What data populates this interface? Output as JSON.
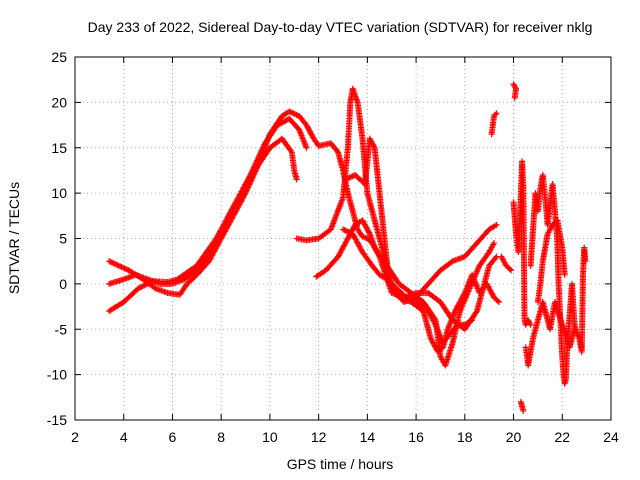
{
  "chart_data": {
    "type": "scatter",
    "title": "Day 233 of 2022, Sidereal Day-to-day VTEC variation (SDTVAR) for receiver nklg",
    "xlabel": "GPS time / hours",
    "ylabel": "SDTVAR / TECUs",
    "xlim": [
      2,
      24
    ],
    "ylim": [
      -15,
      25
    ],
    "xticks": [
      2,
      4,
      6,
      8,
      10,
      12,
      14,
      16,
      18,
      20,
      22,
      24
    ],
    "yticks": [
      -15,
      -10,
      -5,
      0,
      5,
      10,
      15,
      20,
      25
    ],
    "grid": true,
    "marker": "+",
    "color": "#ff0000",
    "tracks": [
      [
        [
          3.4,
          -3.0
        ],
        [
          4.0,
          -2.0
        ],
        [
          4.6,
          -0.5
        ],
        [
          5.2,
          0.3
        ],
        [
          5.8,
          0.2
        ],
        [
          6.2,
          0.5
        ],
        [
          7.0,
          2.0
        ],
        [
          7.8,
          5.0
        ],
        [
          8.5,
          8.5
        ],
        [
          9.2,
          12.0
        ],
        [
          9.8,
          15.5
        ],
        [
          10.3,
          17.5
        ],
        [
          10.8,
          18.2
        ],
        [
          11.2,
          17.0
        ],
        [
          11.5,
          15.0
        ]
      ],
      [
        [
          3.4,
          0.0
        ],
        [
          4.0,
          0.5
        ],
        [
          4.5,
          1.0
        ],
        [
          5.0,
          0.5
        ],
        [
          5.5,
          0.0
        ],
        [
          6.0,
          0.0
        ],
        [
          6.5,
          0.5
        ],
        [
          7.0,
          1.5
        ],
        [
          7.5,
          3.0
        ],
        [
          8.0,
          5.5
        ],
        [
          8.5,
          8.0
        ],
        [
          9.0,
          10.5
        ],
        [
          9.5,
          13.0
        ],
        [
          10.0,
          15.0
        ],
        [
          10.5,
          16.0
        ],
        [
          10.9,
          14.5
        ],
        [
          11.0,
          12.5
        ],
        [
          11.1,
          11.5
        ]
      ],
      [
        [
          3.4,
          2.5
        ],
        [
          3.8,
          2.0
        ],
        [
          4.2,
          1.5
        ],
        [
          4.8,
          0.5
        ],
        [
          5.3,
          -0.5
        ],
        [
          5.8,
          -1.0
        ],
        [
          6.3,
          -1.2
        ],
        [
          6.6,
          0.0
        ],
        [
          7.0,
          1.0
        ],
        [
          7.5,
          2.5
        ],
        [
          8.0,
          5.0
        ],
        [
          8.5,
          7.5
        ],
        [
          9.0,
          10.0
        ],
        [
          9.5,
          13.0
        ],
        [
          10.0,
          16.5
        ],
        [
          10.5,
          18.5
        ],
        [
          10.8,
          19.0
        ],
        [
          11.2,
          18.5
        ],
        [
          11.5,
          17.5
        ],
        [
          11.8,
          16.0
        ],
        [
          12.0,
          15.2
        ],
        [
          12.5,
          15.5
        ],
        [
          12.8,
          14.5
        ],
        [
          13.0,
          12.5
        ],
        [
          13.2,
          10.0
        ],
        [
          13.4,
          8.0
        ],
        [
          13.6,
          6.0
        ],
        [
          13.8,
          5.2
        ],
        [
          14.0,
          5.0
        ],
        [
          14.2,
          4.5
        ],
        [
          14.5,
          3.0
        ],
        [
          15.0,
          -1.0
        ],
        [
          15.5,
          -1.5
        ],
        [
          16.0,
          -1.0
        ],
        [
          16.5,
          -1.0
        ],
        [
          17.0,
          -2.0
        ],
        [
          17.5,
          -4.0
        ],
        [
          18.0,
          -5.0
        ],
        [
          18.5,
          -3.0
        ],
        [
          19.0,
          2.0
        ],
        [
          19.3,
          3.0
        ]
      ],
      [
        [
          11.1,
          5.0
        ],
        [
          11.5,
          4.8
        ],
        [
          12.0,
          5.0
        ],
        [
          12.5,
          6.0
        ],
        [
          13.0,
          9.5
        ],
        [
          13.2,
          15.0
        ],
        [
          13.3,
          20.0
        ],
        [
          13.4,
          21.5
        ],
        [
          13.6,
          20.0
        ],
        [
          13.8,
          16.0
        ],
        [
          14.0,
          10.0
        ],
        [
          14.3,
          7.0
        ],
        [
          14.6,
          4.0
        ],
        [
          15.0,
          0.0
        ],
        [
          15.5,
          -2.0
        ],
        [
          16.0,
          -1.5
        ],
        [
          16.5,
          0.0
        ],
        [
          17.0,
          1.5
        ],
        [
          17.5,
          2.5
        ],
        [
          18.0,
          3.0
        ],
        [
          18.5,
          4.5
        ],
        [
          19.0,
          6.0
        ],
        [
          19.3,
          6.5
        ]
      ],
      [
        [
          11.9,
          0.8
        ],
        [
          12.3,
          1.5
        ],
        [
          12.8,
          3.0
        ],
        [
          13.2,
          5.0
        ],
        [
          13.5,
          6.5
        ],
        [
          13.8,
          7.0
        ],
        [
          14.1,
          5.5
        ],
        [
          14.3,
          4.0
        ],
        [
          14.8,
          2.0
        ],
        [
          15.3,
          0.0
        ],
        [
          15.8,
          -1.0
        ],
        [
          16.3,
          -2.0
        ],
        [
          16.8,
          -4.0
        ],
        [
          17.0,
          -8.0
        ],
        [
          17.2,
          -9.0
        ],
        [
          17.5,
          -6.5
        ],
        [
          17.8,
          -3.0
        ],
        [
          18.2,
          -0.5
        ],
        [
          18.6,
          2.0
        ],
        [
          19.0,
          3.5
        ],
        [
          19.2,
          4.5
        ]
      ],
      [
        [
          13.1,
          11.5
        ],
        [
          13.5,
          12.0
        ],
        [
          13.9,
          11.0
        ],
        [
          14.1,
          16.0
        ],
        [
          14.3,
          15.0
        ],
        [
          14.5,
          10.0
        ],
        [
          14.7,
          5.0
        ],
        [
          14.9,
          0.0
        ],
        [
          15.3,
          -1.5
        ],
        [
          15.8,
          -2.0
        ],
        [
          16.3,
          -3.0
        ],
        [
          16.6,
          -6.0
        ],
        [
          16.9,
          -7.5
        ],
        [
          17.1,
          -7.0
        ],
        [
          17.3,
          -5.0
        ],
        [
          17.6,
          -3.0
        ],
        [
          18.0,
          -1.0
        ],
        [
          18.3,
          1.0
        ],
        [
          18.6,
          -1.0
        ],
        [
          18.9,
          0.0
        ],
        [
          19.2,
          -1.5
        ],
        [
          19.4,
          -2.0
        ]
      ],
      [
        [
          13.0,
          6.0
        ],
        [
          13.4,
          5.5
        ],
        [
          13.8,
          3.5
        ],
        [
          14.2,
          2.0
        ],
        [
          14.5,
          1.0
        ],
        [
          14.8,
          0.5
        ],
        [
          15.2,
          -0.5
        ],
        [
          15.6,
          -1.5
        ],
        [
          16.0,
          -2.0
        ],
        [
          16.4,
          -2.5
        ],
        [
          16.8,
          -4.5
        ],
        [
          17.1,
          -6.5
        ],
        [
          17.4,
          -5.5
        ],
        [
          17.7,
          -4.5
        ],
        [
          18.0,
          -4.5
        ],
        [
          18.3,
          -4.0
        ]
      ],
      [
        [
          19.1,
          16.5
        ],
        [
          19.2,
          18.5
        ],
        [
          19.3,
          18.8
        ]
      ],
      [
        [
          19.5,
          3.0
        ],
        [
          19.7,
          2.0
        ],
        [
          19.9,
          1.5
        ]
      ],
      [
        [
          20.0,
          22.0
        ],
        [
          20.1,
          21.5
        ],
        [
          20.05,
          20.5
        ]
      ],
      [
        [
          20.0,
          9.0
        ],
        [
          20.1,
          5.5
        ],
        [
          20.2,
          3.5
        ],
        [
          20.3,
          10.0
        ],
        [
          20.35,
          13.5
        ],
        [
          20.4,
          11.0
        ],
        [
          20.45,
          -4.0
        ],
        [
          20.5,
          -4.5
        ],
        [
          20.6,
          -4.0
        ],
        [
          20.7,
          -4.5
        ]
      ],
      [
        [
          20.3,
          -13.0
        ],
        [
          20.35,
          -13.5
        ],
        [
          20.4,
          -14.0
        ]
      ],
      [
        [
          20.7,
          2.0
        ],
        [
          20.8,
          6.0
        ],
        [
          20.9,
          10.0
        ],
        [
          21.0,
          8.0
        ],
        [
          21.1,
          10.5
        ],
        [
          21.2,
          12.0
        ],
        [
          21.3,
          9.5
        ],
        [
          21.4,
          6.5
        ],
        [
          21.5,
          8.5
        ],
        [
          21.6,
          11.0
        ],
        [
          21.7,
          8.0
        ],
        [
          21.8,
          4.5
        ],
        [
          21.85,
          0.0
        ],
        [
          21.9,
          -3.0
        ],
        [
          22.0,
          -8.0
        ],
        [
          22.05,
          -10.0
        ],
        [
          22.1,
          -11.0
        ],
        [
          22.15,
          -10.5
        ],
        [
          22.2,
          -7.0
        ],
        [
          22.3,
          -3.5
        ],
        [
          22.4,
          0.0
        ],
        [
          22.5,
          -4.5
        ],
        [
          22.6,
          -5.5
        ],
        [
          22.7,
          -6.0
        ],
        [
          22.8,
          -7.5
        ],
        [
          22.85,
          1.0
        ],
        [
          22.9,
          4.0
        ],
        [
          22.95,
          2.5
        ]
      ],
      [
        [
          21.0,
          -2.0
        ],
        [
          21.1,
          0.0
        ],
        [
          21.2,
          2.5
        ],
        [
          21.3,
          4.0
        ],
        [
          21.4,
          5.5
        ],
        [
          21.6,
          6.5
        ],
        [
          21.8,
          7.0
        ],
        [
          22.0,
          4.0
        ],
        [
          22.1,
          1.0
        ]
      ],
      [
        [
          20.5,
          -7.0
        ],
        [
          20.6,
          -9.0
        ],
        [
          20.8,
          -6.0
        ],
        [
          21.2,
          -2.0
        ],
        [
          21.5,
          -5.0
        ],
        [
          21.7,
          -2.0
        ],
        [
          22.3,
          -7.0
        ],
        [
          22.5,
          -5.0
        ]
      ]
    ]
  }
}
